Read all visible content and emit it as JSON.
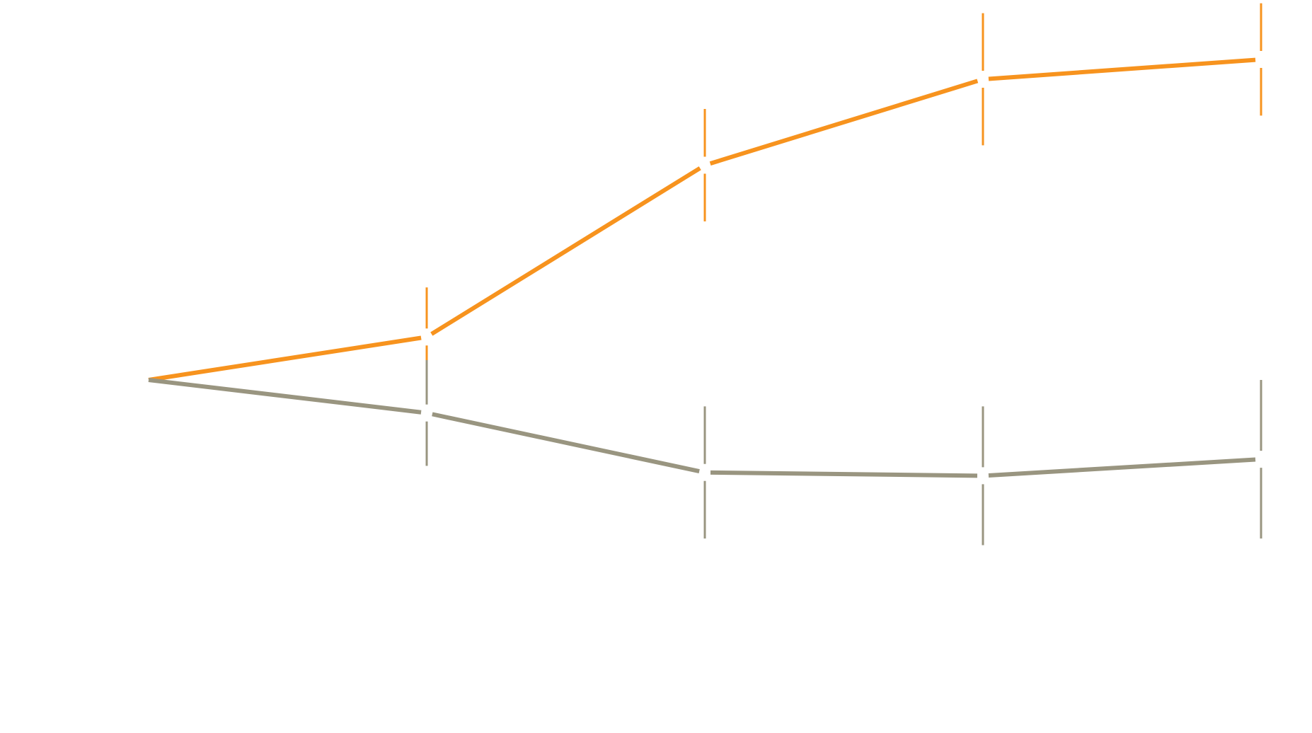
{
  "chart_data": {
    "type": "line",
    "title": "",
    "xlabel": "",
    "ylabel": "",
    "x": [
      0,
      1,
      2,
      3,
      4
    ],
    "xlim": [
      0,
      4
    ],
    "ylim": [
      -1.0,
      1.0
    ],
    "grid": false,
    "legend": "none",
    "series": [
      {
        "color": "#f7931e",
        "values": [
          0.0,
          0.13,
          0.65,
          0.91,
          0.97
        ],
        "error": [
          0.0,
          0.15,
          0.17,
          0.2,
          0.17
        ]
      },
      {
        "color": "#999580",
        "values": [
          0.0,
          -0.1,
          -0.28,
          -0.29,
          -0.24
        ],
        "error": [
          0.0,
          0.16,
          0.2,
          0.21,
          0.24
        ]
      }
    ]
  }
}
